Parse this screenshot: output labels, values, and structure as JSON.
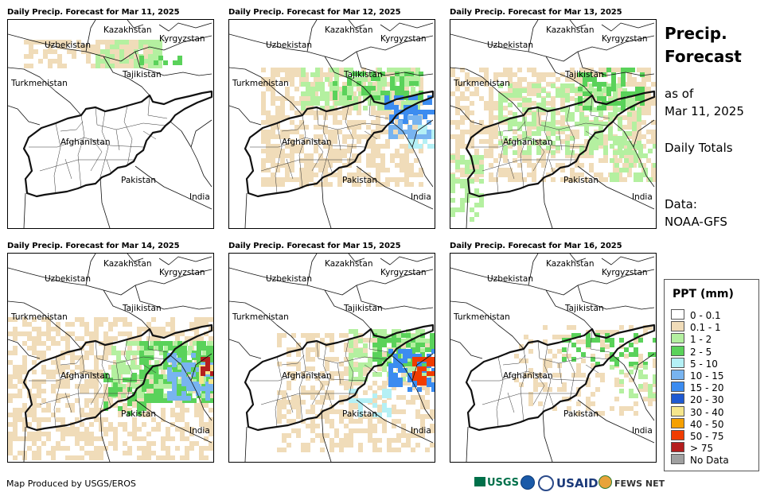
{
  "panels": [
    {
      "title": "Daily Precip. Forecast for Mar 11, 2025",
      "profile": "wide"
    },
    {
      "title": "Daily Precip. Forecast for Mar 12, 2025",
      "profile": "north"
    },
    {
      "title": "Daily Precip. Forecast for Mar 13, 2025",
      "profile": "moderate"
    },
    {
      "title": "Daily Precip. Forecast for Mar 14, 2025",
      "profile": "east-heavy"
    },
    {
      "title": "Daily Precip. Forecast for Mar 15, 2025",
      "profile": "east-heavy2"
    },
    {
      "title": "Daily Precip. Forecast for Mar 16, 2025",
      "profile": "dry"
    }
  ],
  "map_labels": {
    "kazakhstan": "Kazakhstan",
    "kyrgyzstan": "Kyrgyzstan",
    "uzbekistan": "Uzbekistan",
    "tajikistan": "Tajikistan",
    "turkmenistan": "Turkmenistan",
    "afghanistan": "Afghanistan",
    "pakistan": "Pakistan",
    "india": "India"
  },
  "side": {
    "title_line1": "Precip.",
    "title_line2": "Forecast",
    "asof_line1": "as of",
    "asof_line2": "Mar 11, 2025",
    "daily": "Daily Totals",
    "data_line1": "Data:",
    "data_line2": "NOAA-GFS"
  },
  "legend": {
    "title": "PPT (mm)",
    "items": [
      {
        "label": "0 - 0.1",
        "color": "#ffffff"
      },
      {
        "label": "0.1 - 1",
        "color": "#f0dcb9"
      },
      {
        "label": "1 - 2",
        "color": "#b4f0a0"
      },
      {
        "label": "2 - 5",
        "color": "#5ad25a"
      },
      {
        "label": "5 - 10",
        "color": "#b4f0f5"
      },
      {
        "label": "10 - 15",
        "color": "#78b4f0"
      },
      {
        "label": "15 - 20",
        "color": "#3c8cf0"
      },
      {
        "label": "20 - 30",
        "color": "#1e5ad2"
      },
      {
        "label": "30 - 40",
        "color": "#f5e68c"
      },
      {
        "label": "40 - 50",
        "color": "#f5a000"
      },
      {
        "label": "50 - 75",
        "color": "#f03c00"
      },
      {
        "label": "> 75",
        "color": "#b41e1e"
      },
      {
        "label": "No Data",
        "color": "#a0a0a0"
      }
    ]
  },
  "footer": {
    "credit": "Map Produced by USGS/EROS"
  },
  "logos": {
    "usgs": "USGS",
    "usaid": "USAID",
    "fewsnet": "FEWS NET"
  }
}
